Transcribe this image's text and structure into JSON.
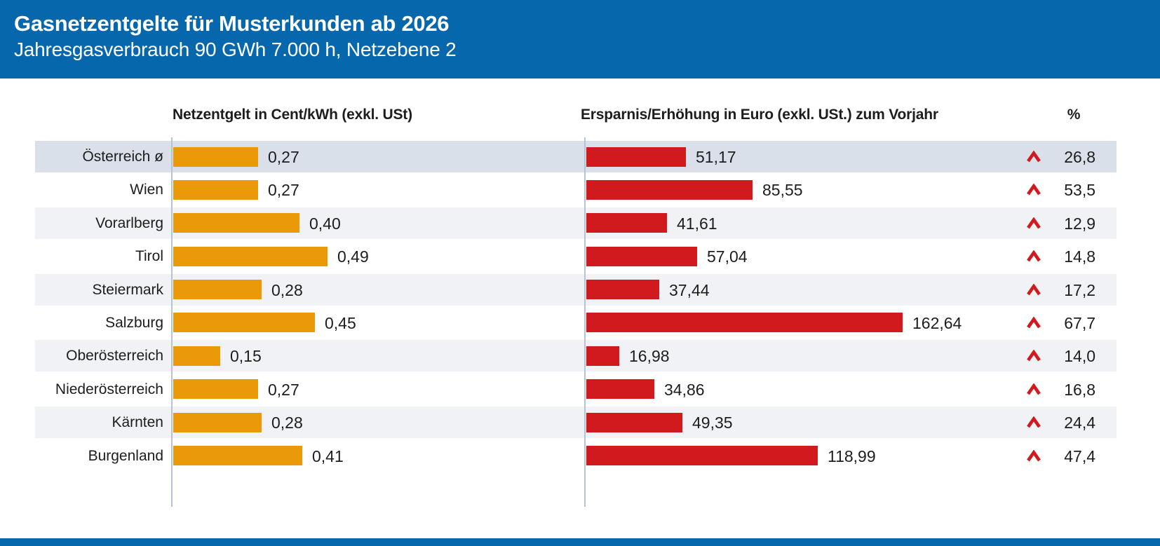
{
  "header": {
    "title": "Gasnetzentgelte für Musterkunden ab 2026",
    "subtitle": "Jahresgasverbrauch 90 GWh 7.000 h, Netzebene 2"
  },
  "column_headers": {
    "netzentgelt": "Netzentgelt in Cent/kWh (exkl. USt)",
    "ersparnis": "Ersparnis/Erhöhung in Euro (exkl. USt.) zum Vorjahr",
    "percent": "%"
  },
  "chart_data": {
    "type": "bar",
    "orientation": "horizontal",
    "grid": false,
    "legend": false,
    "categories": [
      "Österreich ø",
      "Wien",
      "Vorarlberg",
      "Tirol",
      "Steiermark",
      "Salzburg",
      "Oberösterreich",
      "Niederösterreich",
      "Kärnten",
      "Burgenland"
    ],
    "series": [
      {
        "name": "Netzentgelt in Cent/kWh (exkl. USt)",
        "unit": "Cent/kWh",
        "color": "#ea9a08",
        "axis_max": 0.49,
        "values": [
          0.27,
          0.27,
          0.4,
          0.49,
          0.28,
          0.45,
          0.15,
          0.27,
          0.28,
          0.41
        ],
        "labels": [
          "0,27",
          "0,27",
          "0,40",
          "0,49",
          "0,28",
          "0,45",
          "0,15",
          "0,27",
          "0,28",
          "0,41"
        ]
      },
      {
        "name": "Ersparnis/Erhöhung in Euro (exkl. USt.) zum Vorjahr",
        "unit": "Euro",
        "color": "#d11a1d",
        "axis_max": 162.64,
        "values": [
          51.17,
          85.55,
          41.61,
          57.04,
          37.44,
          162.64,
          16.98,
          34.86,
          49.35,
          118.99
        ],
        "labels": [
          "51,17",
          "85,55",
          "41,61",
          "57,04",
          "37,44",
          "162,64",
          "16,98",
          "34,86",
          "49,35",
          "118,99"
        ]
      },
      {
        "name": "%",
        "unit": "%",
        "indicator": "chevron-up",
        "values": [
          26.8,
          53.5,
          12.9,
          14.8,
          17.2,
          67.7,
          14.0,
          16.8,
          24.4,
          47.4
        ],
        "labels": [
          "26,8",
          "53,5",
          "12,9",
          "14,8",
          "17,2",
          "67,7",
          "14,0",
          "16,8",
          "24,4",
          "47,4"
        ]
      }
    ]
  },
  "colors": {
    "header_bg": "#0767ad",
    "footer_bg": "#0767ad",
    "bar_orange": "#ea9a08",
    "bar_red": "#d11a1d",
    "chevron_red": "#d11a1d",
    "row_highlight": "#d9e0ea",
    "row_stripe": "#f1f2f6",
    "axis_line": "#b7c3d3",
    "text": "#1d1d1b"
  }
}
